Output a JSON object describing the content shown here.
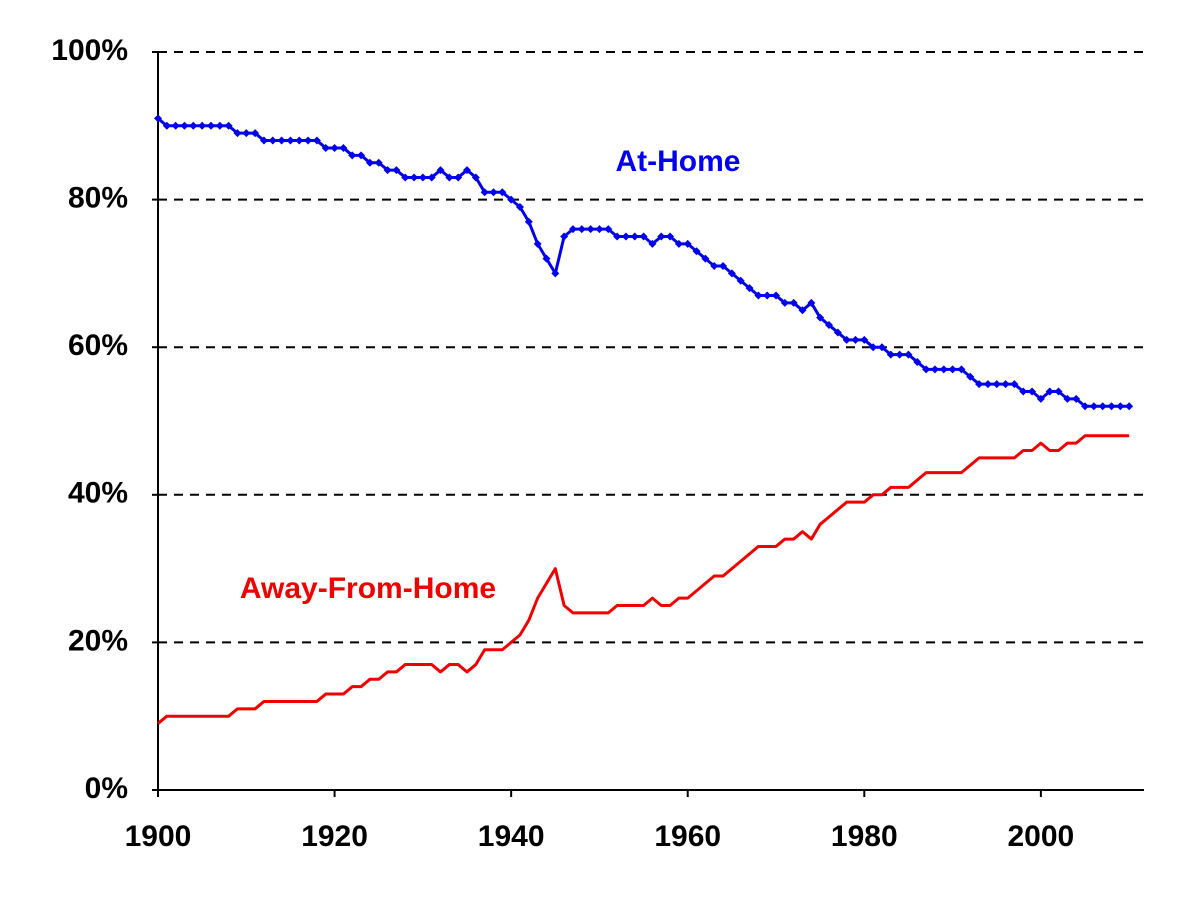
{
  "chart_data": {
    "type": "line",
    "x": [
      1900,
      1901,
      1902,
      1903,
      1904,
      1905,
      1906,
      1907,
      1908,
      1909,
      1910,
      1911,
      1912,
      1913,
      1914,
      1915,
      1916,
      1917,
      1918,
      1919,
      1920,
      1921,
      1922,
      1923,
      1924,
      1925,
      1926,
      1927,
      1928,
      1929,
      1930,
      1931,
      1932,
      1933,
      1934,
      1935,
      1936,
      1937,
      1938,
      1939,
      1940,
      1941,
      1942,
      1943,
      1944,
      1945,
      1946,
      1947,
      1948,
      1949,
      1950,
      1951,
      1952,
      1953,
      1954,
      1955,
      1956,
      1957,
      1958,
      1959,
      1960,
      1961,
      1962,
      1963,
      1964,
      1965,
      1966,
      1967,
      1968,
      1969,
      1970,
      1971,
      1972,
      1973,
      1974,
      1975,
      1976,
      1977,
      1978,
      1979,
      1980,
      1981,
      1982,
      1983,
      1984,
      1985,
      1986,
      1987,
      1988,
      1989,
      1990,
      1991,
      1992,
      1993,
      1994,
      1995,
      1996,
      1997,
      1998,
      1999,
      2000,
      2001,
      2002,
      2003,
      2004,
      2005,
      2006,
      2007,
      2008,
      2009,
      2010
    ],
    "series": [
      {
        "name": "At-Home",
        "color": "#0000ee",
        "markers": true,
        "values": [
          91,
          90,
          90,
          90,
          90,
          90,
          90,
          90,
          90,
          89,
          89,
          89,
          88,
          88,
          88,
          88,
          88,
          88,
          88,
          87,
          87,
          87,
          86,
          86,
          85,
          85,
          84,
          84,
          83,
          83,
          83,
          83,
          84,
          83,
          83,
          84,
          83,
          81,
          81,
          81,
          80,
          79,
          77,
          74,
          72,
          70,
          75,
          76,
          76,
          76,
          76,
          76,
          75,
          75,
          75,
          75,
          74,
          75,
          75,
          74,
          74,
          73,
          72,
          71,
          71,
          70,
          69,
          68,
          67,
          67,
          67,
          66,
          66,
          65,
          66,
          64,
          63,
          62,
          61,
          61,
          61,
          60,
          60,
          59,
          59,
          59,
          58,
          57,
          57,
          57,
          57,
          57,
          56,
          55,
          55,
          55,
          55,
          55,
          54,
          54,
          53,
          54,
          54,
          53,
          53,
          52,
          52,
          52,
          52,
          52,
          52
        ]
      },
      {
        "name": "Away-From-Home",
        "color": "#ee0000",
        "markers": false,
        "values": [
          9,
          10,
          10,
          10,
          10,
          10,
          10,
          10,
          10,
          11,
          11,
          11,
          12,
          12,
          12,
          12,
          12,
          12,
          12,
          13,
          13,
          13,
          14,
          14,
          15,
          15,
          16,
          16,
          17,
          17,
          17,
          17,
          16,
          17,
          17,
          16,
          17,
          19,
          19,
          19,
          20,
          21,
          23,
          26,
          28,
          30,
          25,
          24,
          24,
          24,
          24,
          24,
          25,
          25,
          25,
          25,
          26,
          25,
          25,
          26,
          26,
          27,
          28,
          29,
          29,
          30,
          31,
          32,
          33,
          33,
          33,
          34,
          34,
          35,
          34,
          36,
          37,
          38,
          39,
          39,
          39,
          40,
          40,
          41,
          41,
          41,
          42,
          43,
          43,
          43,
          43,
          43,
          44,
          45,
          45,
          45,
          45,
          45,
          46,
          46,
          47,
          46,
          46,
          47,
          47,
          48,
          48,
          48,
          48,
          48,
          48
        ]
      }
    ],
    "xlim": [
      1900,
      2011
    ],
    "xticks": [
      1900,
      1920,
      1940,
      1960,
      1980,
      2000
    ],
    "ylim": [
      0,
      100
    ],
    "yticks": [
      {
        "value": 0,
        "label": "0%"
      },
      {
        "value": 20,
        "label": "20%"
      },
      {
        "value": 40,
        "label": "40%"
      },
      {
        "value": 60,
        "label": "60%"
      },
      {
        "value": 80,
        "label": "80%"
      },
      {
        "value": 100,
        "label": "100%"
      }
    ],
    "grid": true
  }
}
